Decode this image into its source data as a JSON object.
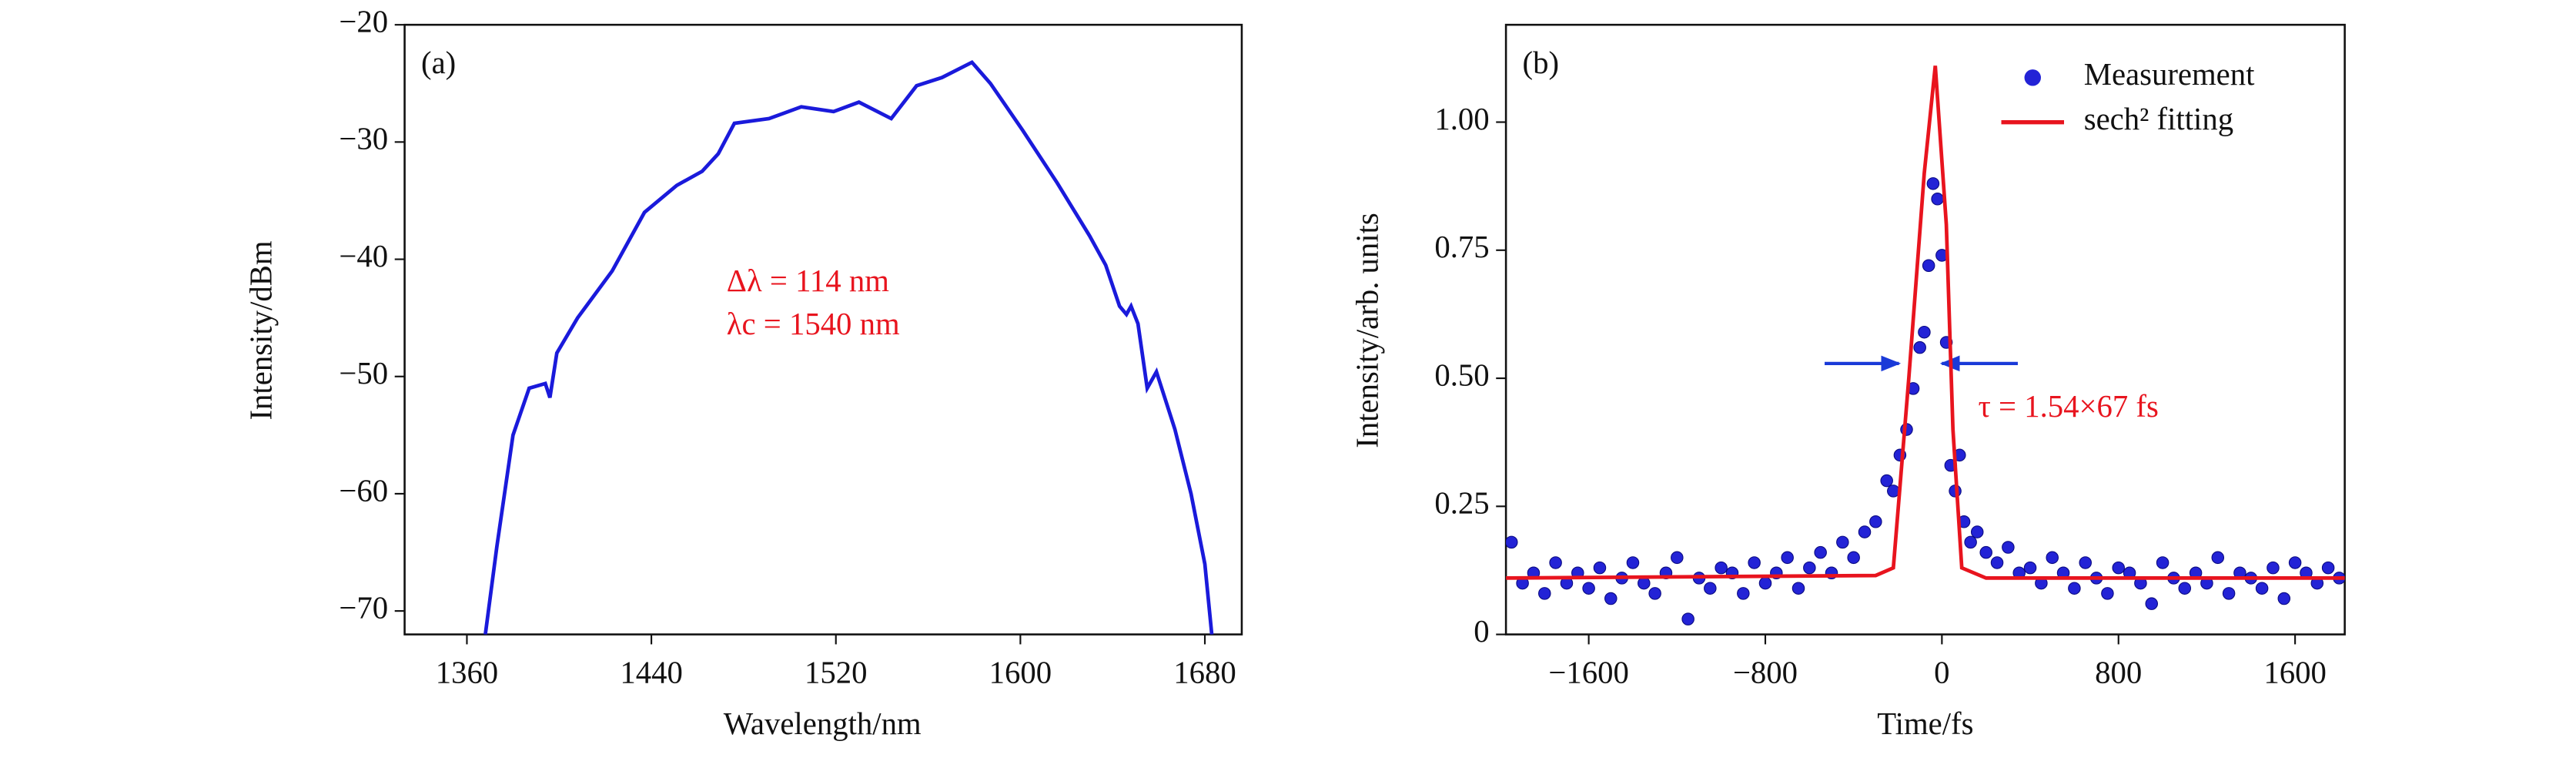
{
  "chart_data": [
    {
      "type": "line",
      "panel_label": "(a)",
      "xlabel": "Wavelength/nm",
      "ylabel": "Intensity/dBm",
      "annotations": [
        "Δλ = 114 nm",
        "λc = 1540 nm"
      ],
      "xlim": [
        1333,
        1696
      ],
      "ylim": [
        -72,
        -20
      ],
      "xticks": [
        1360,
        1440,
        1520,
        1600,
        1680
      ],
      "yticks": [
        {
          "value": -20,
          "label": "−20"
        },
        {
          "value": -30,
          "label": "−30"
        },
        {
          "value": -40,
          "label": "−40"
        },
        {
          "value": -50,
          "label": "−50"
        },
        {
          "value": -60,
          "label": "−60"
        },
        {
          "value": -70,
          "label": "−70"
        }
      ],
      "series": [
        {
          "type": "line",
          "color": "#1a1adb",
          "x": [
            1368,
            1373,
            1380,
            1387,
            1394,
            1396,
            1399,
            1408,
            1423,
            1437,
            1451,
            1462,
            1469,
            1476,
            1491,
            1505,
            1519,
            1530,
            1544,
            1555,
            1566,
            1579,
            1587,
            1601,
            1616,
            1630,
            1637,
            1643,
            1646,
            1648,
            1651,
            1655,
            1659,
            1667,
            1674,
            1680,
            1683
          ],
          "values": [
            -72,
            -64.5,
            -55,
            -51,
            -50.6,
            -51.8,
            -48,
            -45,
            -41,
            -36,
            -33.7,
            -32.5,
            -31,
            -28.4,
            -28,
            -27,
            -27.4,
            -26.6,
            -28,
            -25.2,
            -24.5,
            -23.2,
            -25,
            -29,
            -33.5,
            -38,
            -40.5,
            -44,
            -44.7,
            -44,
            -45.5,
            -51,
            -49.6,
            -54.5,
            -60,
            -66,
            -72
          ]
        }
      ]
    },
    {
      "type": "scatter",
      "panel_label": "(b)",
      "xlabel": "Time/fs",
      "ylabel": "Intensity/arb. units",
      "annotations": [
        "τ = 1.54×67 fs"
      ],
      "legend": "upper right",
      "xlim": [
        -1975,
        1825
      ],
      "ylim": [
        0,
        1.19
      ],
      "xticks": [
        {
          "value": -1600,
          "label": "−1600"
        },
        {
          "value": -800,
          "label": "−800"
        },
        0,
        800,
        1600
      ],
      "yticks": [
        0,
        0.25,
        {
          "value": 0.5,
          "label": "0.50"
        },
        0.75,
        {
          "value": 1,
          "label": "1.00"
        }
      ],
      "series": [
        {
          "name": "Measurement",
          "type": "scatter",
          "color": "#2323d6",
          "x": [
            -1950,
            -1900,
            -1850,
            -1800,
            -1750,
            -1700,
            -1650,
            -1600,
            -1550,
            -1500,
            -1450,
            -1400,
            -1350,
            -1300,
            -1250,
            -1200,
            -1150,
            -1100,
            -1050,
            -1000,
            -950,
            -900,
            -850,
            -800,
            -750,
            -700,
            -650,
            -600,
            -550,
            -500,
            -450,
            -400,
            -350,
            -300,
            -250,
            -220,
            -190,
            -160,
            -130,
            -100,
            -80,
            -60,
            -40,
            -20,
            0,
            20,
            40,
            60,
            80,
            100,
            130,
            160,
            200,
            250,
            300,
            350,
            400,
            450,
            500,
            550,
            600,
            650,
            700,
            750,
            800,
            850,
            900,
            950,
            1000,
            1050,
            1100,
            1150,
            1200,
            1250,
            1300,
            1350,
            1400,
            1450,
            1500,
            1550,
            1600,
            1650,
            1700,
            1750,
            1800
          ],
          "values": [
            0.18,
            0.1,
            0.12,
            0.08,
            0.14,
            0.1,
            0.12,
            0.09,
            0.13,
            0.07,
            0.11,
            0.14,
            0.1,
            0.08,
            0.12,
            0.15,
            0.03,
            0.11,
            0.09,
            0.13,
            0.12,
            0.08,
            0.14,
            0.1,
            0.12,
            0.15,
            0.09,
            0.13,
            0.16,
            0.12,
            0.18,
            0.15,
            0.2,
            0.22,
            0.3,
            0.28,
            0.35,
            0.4,
            0.48,
            0.56,
            0.59,
            0.72,
            0.88,
            0.85,
            0.74,
            0.57,
            0.33,
            0.28,
            0.35,
            0.22,
            0.18,
            0.2,
            0.16,
            0.14,
            0.17,
            0.12,
            0.13,
            0.1,
            0.15,
            0.12,
            0.09,
            0.14,
            0.11,
            0.08,
            0.13,
            0.12,
            0.1,
            0.06,
            0.14,
            0.11,
            0.09,
            0.12,
            0.1,
            0.15,
            0.08,
            0.12,
            0.11,
            0.09,
            0.13,
            0.07,
            0.14,
            0.12,
            0.1,
            0.13,
            0.11
          ]
        },
        {
          "name": "sech² fitting",
          "type": "line",
          "color": "#e8141e",
          "x": [
            -1975,
            -300,
            -220,
            -150,
            -80,
            -30,
            20,
            50,
            90,
            200,
            1825
          ],
          "values": [
            0.11,
            0.115,
            0.13,
            0.5,
            0.9,
            1.11,
            0.8,
            0.4,
            0.13,
            0.11,
            0.11
          ]
        }
      ]
    }
  ]
}
